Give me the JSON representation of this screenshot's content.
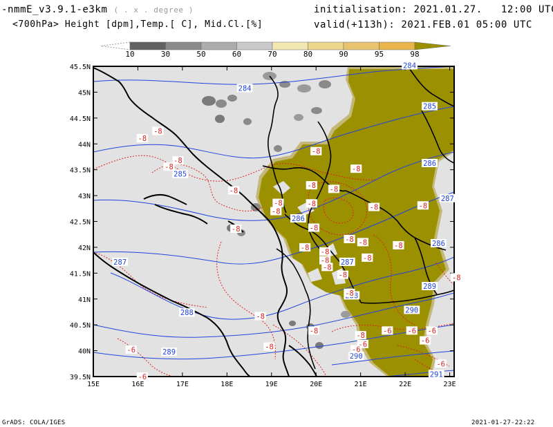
{
  "header": {
    "model": "-nmmE_v3.9.1-e3km",
    "unit_note": "( . x . degree )",
    "init_label": "initialisation: 2021.01.27.   12:00 UTC",
    "field": "<700hPa> Height [dpm],Temp.[ C], Mid.Cl.[%]",
    "valid_label": "valid(+113h): 2021.FEB.01 05:00 UTC"
  },
  "colorbar": {
    "labels": [
      "10",
      "30",
      "50",
      "60",
      "70",
      "80",
      "90",
      "95",
      "98"
    ],
    "colors": [
      "#626262",
      "#8a8a8a",
      "#acacac",
      "#c9c9c9",
      "#f0e8b0",
      "#ecd68c",
      "#e9c470",
      "#e7b54a",
      "#9a9000"
    ]
  },
  "map": {
    "lat_labels": [
      "45.5N",
      "45N",
      "44.5N",
      "44N",
      "43.5N",
      "43N",
      "42.5N",
      "42N",
      "41.5N",
      "41N",
      "40.5N",
      "40N",
      "39.5N"
    ],
    "lon_labels": [
      "15E",
      "16E",
      "17E",
      "18E",
      "19E",
      "20E",
      "21E",
      "22E",
      "23E"
    ],
    "colors": {
      "background": "#e2e2e2",
      "cloud": "#9a9000",
      "height": "#2244dd",
      "temp": "#dd2222",
      "coast": "#000000"
    },
    "height_labels": [
      {
        "text": "284",
        "lon": 22.1,
        "lat": 45.52
      },
      {
        "text": "284",
        "lon": 18.4,
        "lat": 45.08
      },
      {
        "text": "285",
        "lon": 22.55,
        "lat": 44.73
      },
      {
        "text": "285",
        "lon": 16.95,
        "lat": 43.42
      },
      {
        "text": "286",
        "lon": 22.55,
        "lat": 43.63
      },
      {
        "text": "286",
        "lon": 19.6,
        "lat": 42.56
      },
      {
        "text": "287",
        "lon": 22.95,
        "lat": 42.95
      },
      {
        "text": "286",
        "lon": 22.75,
        "lat": 42.08
      },
      {
        "text": "287",
        "lon": 15.6,
        "lat": 41.72
      },
      {
        "text": "287",
        "lon": 20.7,
        "lat": 41.72
      },
      {
        "text": "289",
        "lon": 22.55,
        "lat": 41.25
      },
      {
        "text": "288",
        "lon": 17.1,
        "lat": 40.74
      },
      {
        "text": "288",
        "lon": 20.8,
        "lat": 41.07
      },
      {
        "text": "290",
        "lon": 22.15,
        "lat": 40.79
      },
      {
        "text": "289",
        "lon": 16.7,
        "lat": 39.98
      },
      {
        "text": "290",
        "lon": 20.9,
        "lat": 39.9
      },
      {
        "text": "291",
        "lon": 22.7,
        "lat": 39.55
      }
    ],
    "temp_labels": [
      {
        "text": "-8",
        "lon": 16.45,
        "lat": 44.25
      },
      {
        "text": "-8",
        "lon": 16.1,
        "lat": 44.11
      },
      {
        "text": "-8",
        "lon": 16.9,
        "lat": 43.68
      },
      {
        "text": "-8",
        "lon": 16.7,
        "lat": 43.56
      },
      {
        "text": "-8",
        "lon": 18.15,
        "lat": 43.1
      },
      {
        "text": "-8",
        "lon": 20.0,
        "lat": 43.86
      },
      {
        "text": "-8",
        "lon": 20.9,
        "lat": 43.52
      },
      {
        "text": "-8",
        "lon": 19.9,
        "lat": 43.2
      },
      {
        "text": "-8",
        "lon": 20.4,
        "lat": 43.13
      },
      {
        "text": "-8",
        "lon": 19.15,
        "lat": 42.86
      },
      {
        "text": "-8",
        "lon": 19.9,
        "lat": 42.85
      },
      {
        "text": "-8",
        "lon": 19.1,
        "lat": 42.7
      },
      {
        "text": "-8",
        "lon": 21.3,
        "lat": 42.78
      },
      {
        "text": "-8",
        "lon": 22.4,
        "lat": 42.81
      },
      {
        "text": "-8",
        "lon": 18.2,
        "lat": 42.36
      },
      {
        "text": "-8",
        "lon": 19.95,
        "lat": 42.38
      },
      {
        "text": "-8",
        "lon": 19.75,
        "lat": 42.0
      },
      {
        "text": "-8",
        "lon": 20.2,
        "lat": 41.92
      },
      {
        "text": "-8",
        "lon": 21.05,
        "lat": 42.1
      },
      {
        "text": "-8",
        "lon": 21.85,
        "lat": 42.04
      },
      {
        "text": "-8",
        "lon": 20.75,
        "lat": 42.16
      },
      {
        "text": "-8",
        "lon": 20.2,
        "lat": 41.75
      },
      {
        "text": "-8",
        "lon": 20.25,
        "lat": 41.62
      },
      {
        "text": "-8",
        "lon": 21.15,
        "lat": 41.8
      },
      {
        "text": "-8",
        "lon": 20.6,
        "lat": 41.47
      },
      {
        "text": "-8",
        "lon": 20.75,
        "lat": 41.12
      },
      {
        "text": "-8",
        "lon": 18.75,
        "lat": 40.67
      },
      {
        "text": "-8",
        "lon": 19.95,
        "lat": 40.39
      },
      {
        "text": "-8",
        "lon": 18.95,
        "lat": 40.08
      },
      {
        "text": "-8",
        "lon": 21.0,
        "lat": 40.3
      },
      {
        "text": "-6",
        "lon": 21.05,
        "lat": 40.13
      },
      {
        "text": "-6",
        "lon": 21.6,
        "lat": 40.39
      },
      {
        "text": "-6",
        "lon": 22.15,
        "lat": 40.39
      },
      {
        "text": "-6",
        "lon": 22.6,
        "lat": 40.39
      },
      {
        "text": "-6",
        "lon": 22.45,
        "lat": 40.2
      },
      {
        "text": "-6",
        "lon": 20.9,
        "lat": 40.03
      },
      {
        "text": "-6",
        "lon": 15.85,
        "lat": 40.02
      },
      {
        "text": "-6",
        "lon": 22.8,
        "lat": 39.75
      },
      {
        "text": "-6",
        "lon": 16.1,
        "lat": 39.5
      },
      {
        "text": "-8",
        "lon": 23.15,
        "lat": 41.42
      }
    ]
  },
  "footer": {
    "left": "GrADS: COLA/IGES",
    "right": "2021-01-27-22:22"
  }
}
